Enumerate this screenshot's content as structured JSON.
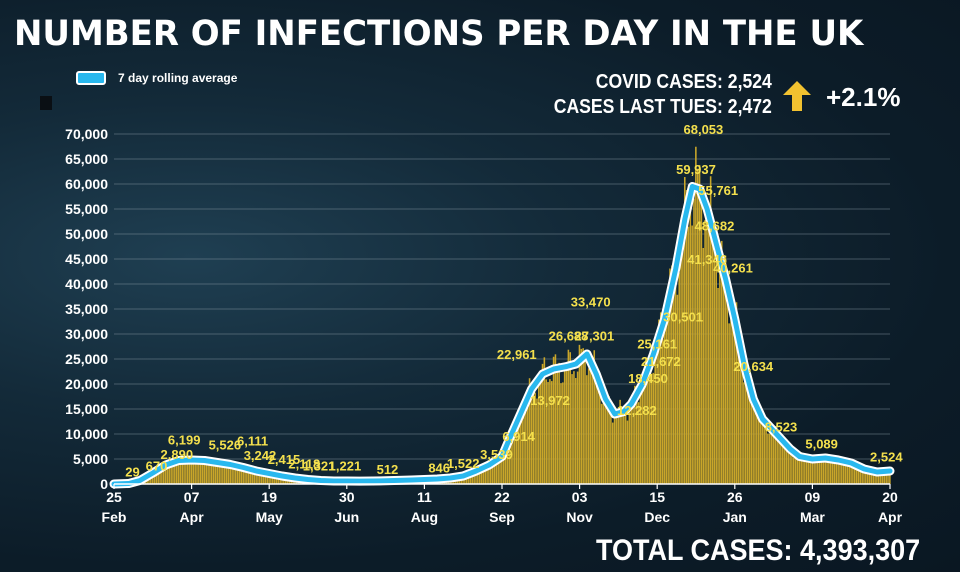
{
  "header": {
    "title": "NUMBER OF INFECTIONS PER DAY IN THE UK",
    "legend_label": "7 day rolling average",
    "covid_cases": "COVID CASES: 2,524",
    "cases_last_tues": "CASES LAST TUES: 2,472",
    "change": "+2.1%",
    "arrow_icon": "up-arrow-icon"
  },
  "footer": {
    "total_cases": "TOTAL CASES: 4,393,307"
  },
  "colors": {
    "background": "#0f2330",
    "bars": "#c9a62a",
    "rolling_line": "#29b8ee",
    "data_labels": "#f4e04d",
    "arrow": "#f2c230"
  },
  "chart_data": {
    "type": "bar",
    "title": "NUMBER OF INFECTIONS PER DAY IN THE UK",
    "xlabel": "",
    "ylabel": "",
    "ylim": [
      0,
      70000
    ],
    "yticks": [
      "0",
      "5,000",
      "10,000",
      "15,000",
      "20,000",
      "25,000",
      "30,000",
      "35,000",
      "40,000",
      "45,000",
      "50,000",
      "55,000",
      "60,000",
      "65,000",
      "70,000"
    ],
    "x_ticks": [
      {
        "day": 0,
        "top": "25",
        "bottom": "Feb"
      },
      {
        "day": 42,
        "top": "07",
        "bottom": "Apr"
      },
      {
        "day": 84,
        "top": "19",
        "bottom": "May"
      },
      {
        "day": 126,
        "top": "30",
        "bottom": "Jun"
      },
      {
        "day": 168,
        "top": "11",
        "bottom": "Aug"
      },
      {
        "day": 210,
        "top": "22",
        "bottom": "Sep"
      },
      {
        "day": 252,
        "top": "03",
        "bottom": "Nov"
      },
      {
        "day": 294,
        "top": "15",
        "bottom": "Dec"
      },
      {
        "day": 336,
        "top": "26",
        "bottom": "Jan"
      },
      {
        "day": 378,
        "top": "09",
        "bottom": "Mar"
      },
      {
        "day": 420,
        "top": "20",
        "bottom": "Apr"
      }
    ],
    "x_range_days": [
      0,
      420
    ],
    "grid": true,
    "legend_position": "top-left",
    "series": [
      {
        "name": "7 day rolling average",
        "points": [
          [
            0,
            0
          ],
          [
            8,
            100
          ],
          [
            14,
            700
          ],
          [
            21,
            2200
          ],
          [
            28,
            3800
          ],
          [
            35,
            4700
          ],
          [
            42,
            4800
          ],
          [
            49,
            4700
          ],
          [
            56,
            4300
          ],
          [
            63,
            3900
          ],
          [
            70,
            3300
          ],
          [
            77,
            2600
          ],
          [
            84,
            2100
          ],
          [
            91,
            1600
          ],
          [
            98,
            1200
          ],
          [
            105,
            900
          ],
          [
            112,
            700
          ],
          [
            119,
            600
          ],
          [
            126,
            600
          ],
          [
            133,
            580
          ],
          [
            140,
            600
          ],
          [
            147,
            650
          ],
          [
            154,
            720
          ],
          [
            161,
            800
          ],
          [
            168,
            900
          ],
          [
            175,
            1000
          ],
          [
            182,
            1200
          ],
          [
            189,
            1600
          ],
          [
            196,
            2600
          ],
          [
            203,
            3800
          ],
          [
            210,
            5500
          ],
          [
            214,
            9000
          ],
          [
            220,
            14000
          ],
          [
            226,
            19000
          ],
          [
            232,
            22000
          ],
          [
            238,
            23000
          ],
          [
            245,
            23500
          ],
          [
            250,
            24000
          ],
          [
            256,
            26000
          ],
          [
            261,
            22000
          ],
          [
            266,
            17000
          ],
          [
            271,
            14000
          ],
          [
            276,
            14500
          ],
          [
            280,
            16000
          ],
          [
            286,
            20000
          ],
          [
            292,
            26000
          ],
          [
            298,
            33000
          ],
          [
            304,
            43000
          ],
          [
            309,
            53000
          ],
          [
            313,
            59500
          ],
          [
            317,
            59000
          ],
          [
            321,
            55000
          ],
          [
            326,
            48000
          ],
          [
            331,
            41000
          ],
          [
            336,
            33000
          ],
          [
            341,
            24000
          ],
          [
            346,
            17000
          ],
          [
            351,
            13000
          ],
          [
            356,
            11000
          ],
          [
            361,
            9000
          ],
          [
            366,
            7000
          ],
          [
            371,
            5500
          ],
          [
            378,
            5000
          ],
          [
            385,
            5200
          ],
          [
            392,
            4800
          ],
          [
            399,
            4200
          ],
          [
            406,
            3000
          ],
          [
            413,
            2400
          ],
          [
            420,
            2600
          ]
        ]
      }
    ],
    "annotations": [
      {
        "day": 10,
        "value": 1500,
        "label": "29"
      },
      {
        "day": 23,
        "value": 2700,
        "label": "670"
      },
      {
        "day": 34,
        "value": 5000,
        "label": "2,890"
      },
      {
        "day": 38,
        "value": 7900,
        "label": "6,199"
      },
      {
        "day": 60,
        "value": 6900,
        "label": "5,526"
      },
      {
        "day": 75,
        "value": 7700,
        "label": "6,111"
      },
      {
        "day": 79,
        "value": 4800,
        "label": "3,242"
      },
      {
        "day": 92,
        "value": 4000,
        "label": "2,415"
      },
      {
        "day": 103,
        "value": 3100,
        "label": "2,118"
      },
      {
        "day": 111,
        "value": 2700,
        "label": "1,321"
      },
      {
        "day": 125,
        "value": 2700,
        "label": "1,221"
      },
      {
        "day": 148,
        "value": 2000,
        "label": "512"
      },
      {
        "day": 176,
        "value": 2300,
        "label": "846"
      },
      {
        "day": 189,
        "value": 3200,
        "label": "1,522"
      },
      {
        "day": 207,
        "value": 5000,
        "label": "3,539"
      },
      {
        "day": 219,
        "value": 8600,
        "label": "6,914"
      },
      {
        "day": 218,
        "value": 25000,
        "label": "22,961"
      },
      {
        "day": 236,
        "value": 15800,
        "label": "13,972"
      },
      {
        "day": 246,
        "value": 28700,
        "label": "26,688"
      },
      {
        "day": 260,
        "value": 28700,
        "label": "27,301"
      },
      {
        "day": 258,
        "value": 35500,
        "label": "33,470"
      },
      {
        "day": 283,
        "value": 13800,
        "label": "12,282"
      },
      {
        "day": 289,
        "value": 20200,
        "label": "18,450"
      },
      {
        "day": 296,
        "value": 23600,
        "label": "21,672"
      },
      {
        "day": 294,
        "value": 27100,
        "label": "25,161"
      },
      {
        "day": 308,
        "value": 32500,
        "label": "30,501"
      },
      {
        "day": 319,
        "value": 70000,
        "label": "68,053"
      },
      {
        "day": 315,
        "value": 62000,
        "label": "59,937"
      },
      {
        "day": 327,
        "value": 57800,
        "label": "55,761"
      },
      {
        "day": 325,
        "value": 50700,
        "label": "48,682"
      },
      {
        "day": 321,
        "value": 44000,
        "label": "41,346"
      },
      {
        "day": 335,
        "value": 42300,
        "label": "40,261"
      },
      {
        "day": 346,
        "value": 22600,
        "label": "20,634"
      },
      {
        "day": 361,
        "value": 10500,
        "label": "8,523"
      },
      {
        "day": 383,
        "value": 7100,
        "label": "5,089"
      },
      {
        "day": 418,
        "value": 4500,
        "label": "2,524"
      }
    ]
  }
}
